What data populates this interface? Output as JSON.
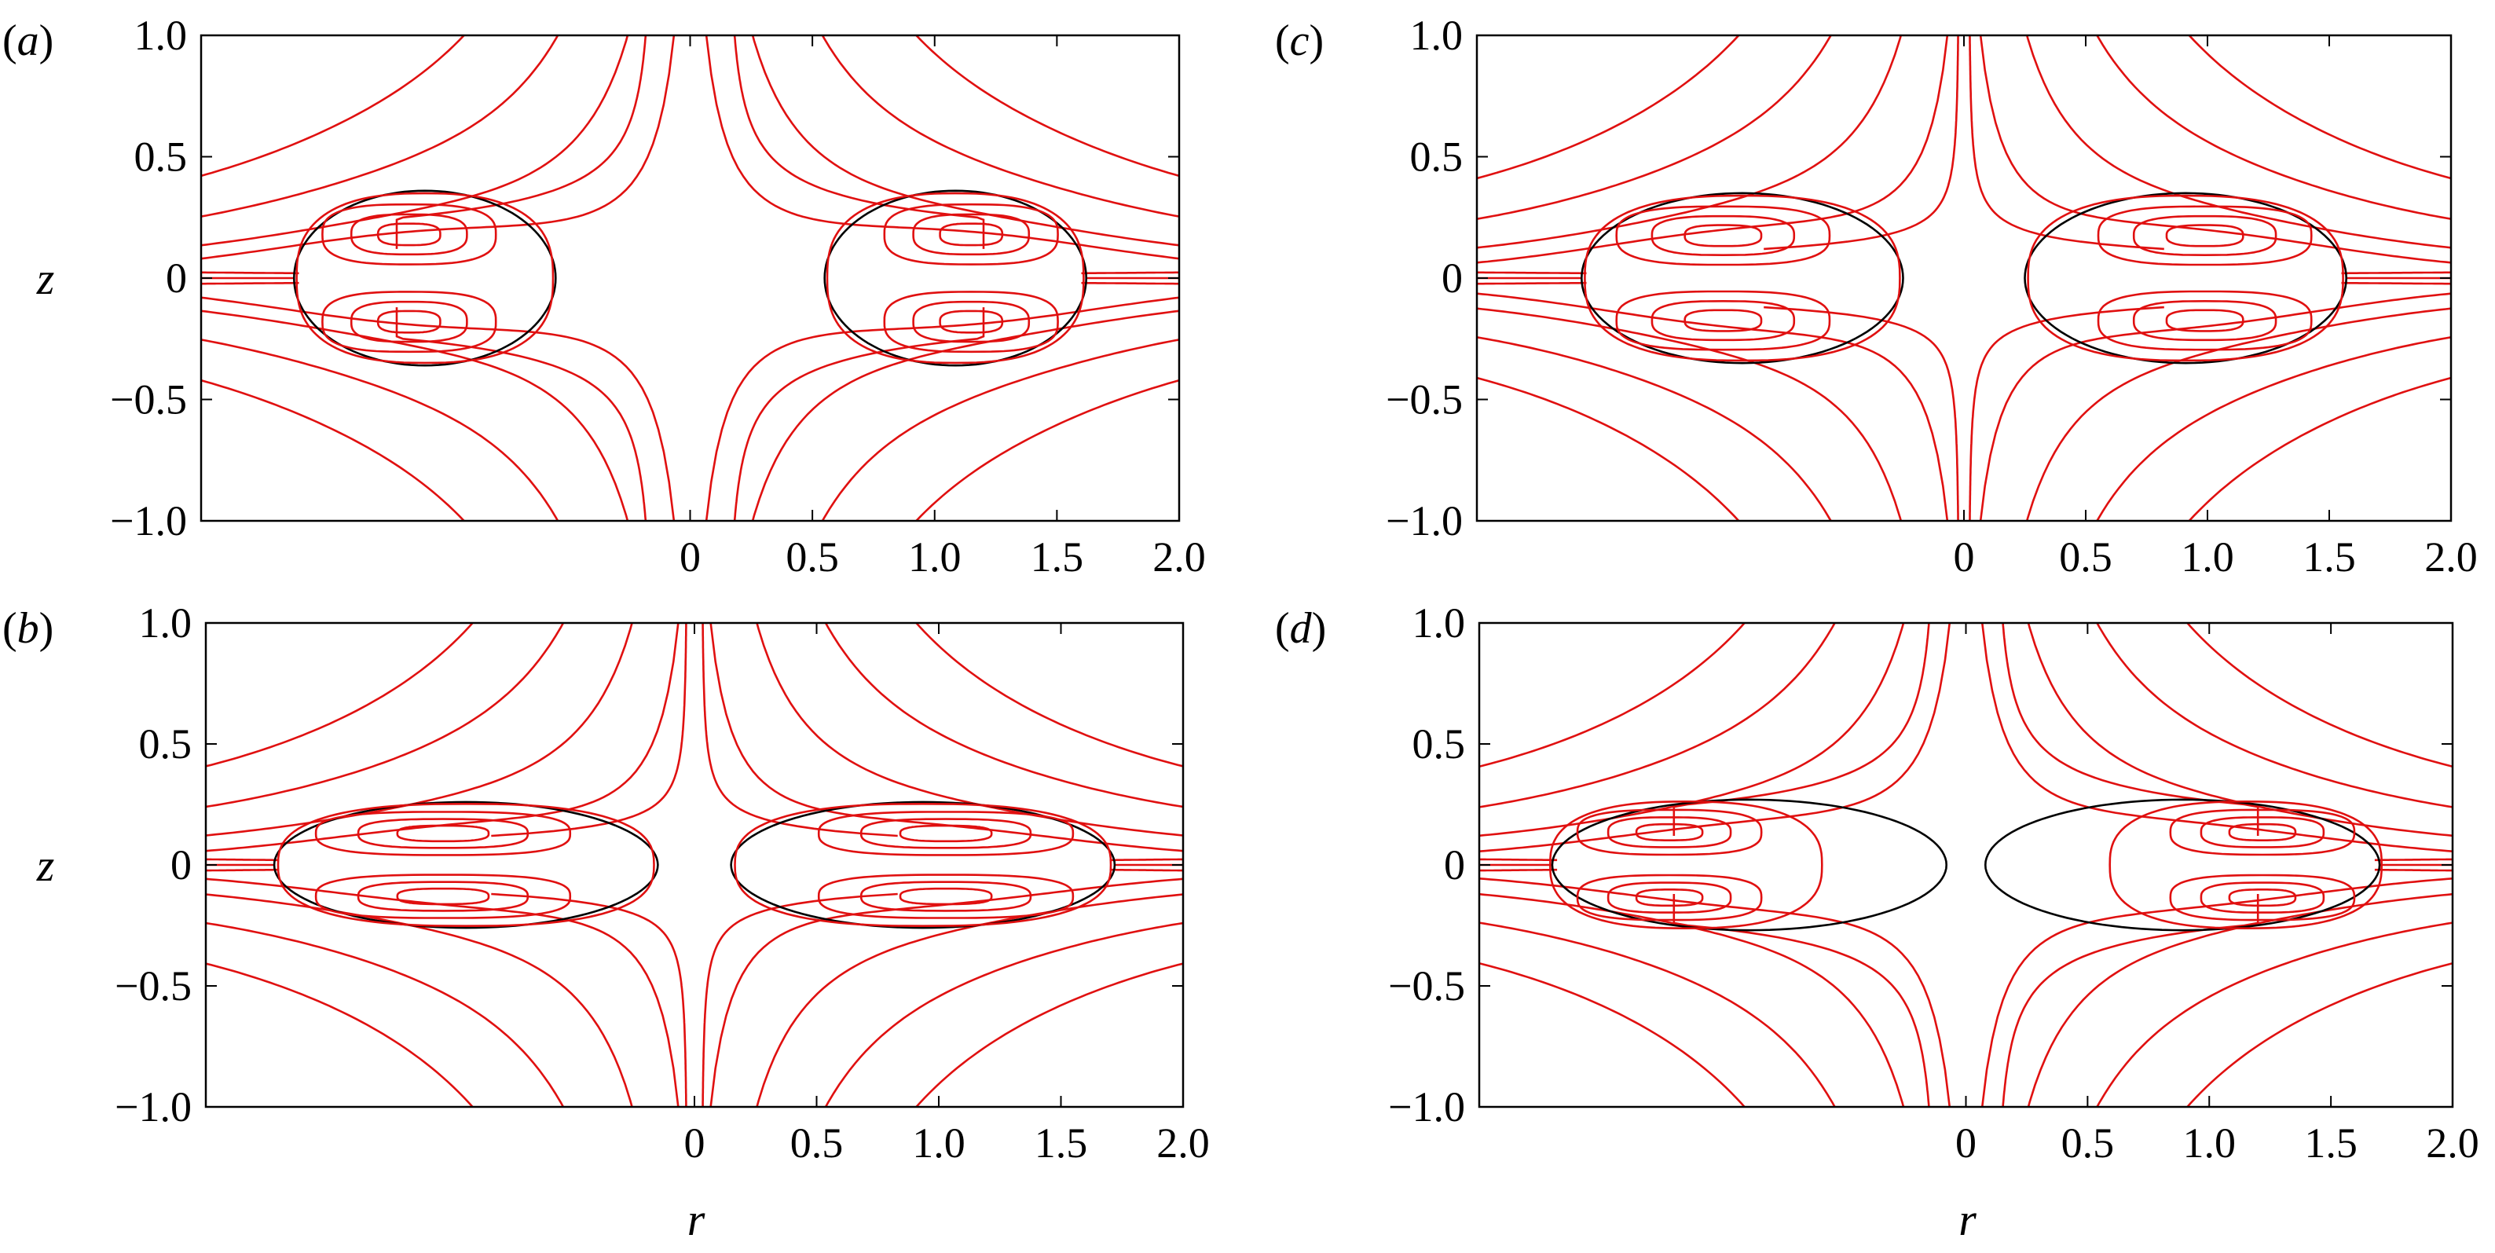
{
  "figure": {
    "panels": [
      {
        "letter": "a",
        "label_open": "(",
        "label_close": ")"
      },
      {
        "letter": "b",
        "label_open": "(",
        "label_close": ")"
      },
      {
        "letter": "c",
        "label_open": "(",
        "label_close": ")"
      },
      {
        "letter": "d",
        "label_open": "(",
        "label_close": ")"
      }
    ],
    "colors": {
      "streamlines": "#e01010",
      "drop_interface": "#000000",
      "frame": "#000000"
    }
  },
  "chart_data": [
    {
      "type": "line",
      "panel": "a",
      "xlabel": "",
      "ylabel": "z",
      "xlim": [
        -2.0,
        2.0
      ],
      "ylim": [
        -1.0,
        1.0
      ],
      "xticks": [
        "0",
        "0.5",
        "1.0",
        "1.5",
        "2.0"
      ],
      "yticks": [
        "1.0",
        "0.5",
        "0",
        "−0.5",
        "−1.0"
      ],
      "drop": {
        "r_inner": 0.55,
        "r_outer": 1.62,
        "z_half": 0.36
      },
      "axis_gap": 0.15
    },
    {
      "type": "line",
      "panel": "b",
      "xlabel": "r",
      "ylabel": "z",
      "xlim": [
        -2.0,
        2.0
      ],
      "ylim": [
        -1.0,
        1.0
      ],
      "xticks": [
        "0",
        "0.5",
        "1.0",
        "1.5",
        "2.0"
      ],
      "yticks": [
        "1.0",
        "0.5",
        "0",
        "−0.5",
        "−1.0"
      ],
      "drop": {
        "r_inner": 0.15,
        "r_outer": 1.72,
        "z_half": 0.26
      },
      "axis_gap": 0.03
    },
    {
      "type": "line",
      "panel": "c",
      "xlabel": "",
      "ylabel": "",
      "xlim": [
        -2.0,
        2.0
      ],
      "ylim": [
        -1.0,
        1.0
      ],
      "xticks": [
        "0",
        "0.5",
        "1.0",
        "1.5",
        "2.0"
      ],
      "yticks": [
        "1.0",
        "0.5",
        "0",
        "−0.5",
        "−1.0"
      ],
      "drop": {
        "r_inner": 0.25,
        "r_outer": 1.57,
        "z_half": 0.35
      },
      "axis_gap": 0.02
    },
    {
      "type": "line",
      "panel": "d",
      "xlabel": "r",
      "ylabel": "",
      "xlim": [
        -2.0,
        2.0
      ],
      "ylim": [
        -1.0,
        1.0
      ],
      "xticks": [
        "0",
        "0.5",
        "1.0",
        "1.5",
        "2.0"
      ],
      "yticks": [
        "1.0",
        "0.5",
        "0",
        "−0.5",
        "−1.0"
      ],
      "drop": {
        "r_inner": 0.08,
        "r_outer": 1.7,
        "z_half": 0.27
      },
      "inner_vortex_outer_r": 1.72,
      "inner_vortex_inner_r": 0.58,
      "axis_gap": 0.12
    }
  ]
}
